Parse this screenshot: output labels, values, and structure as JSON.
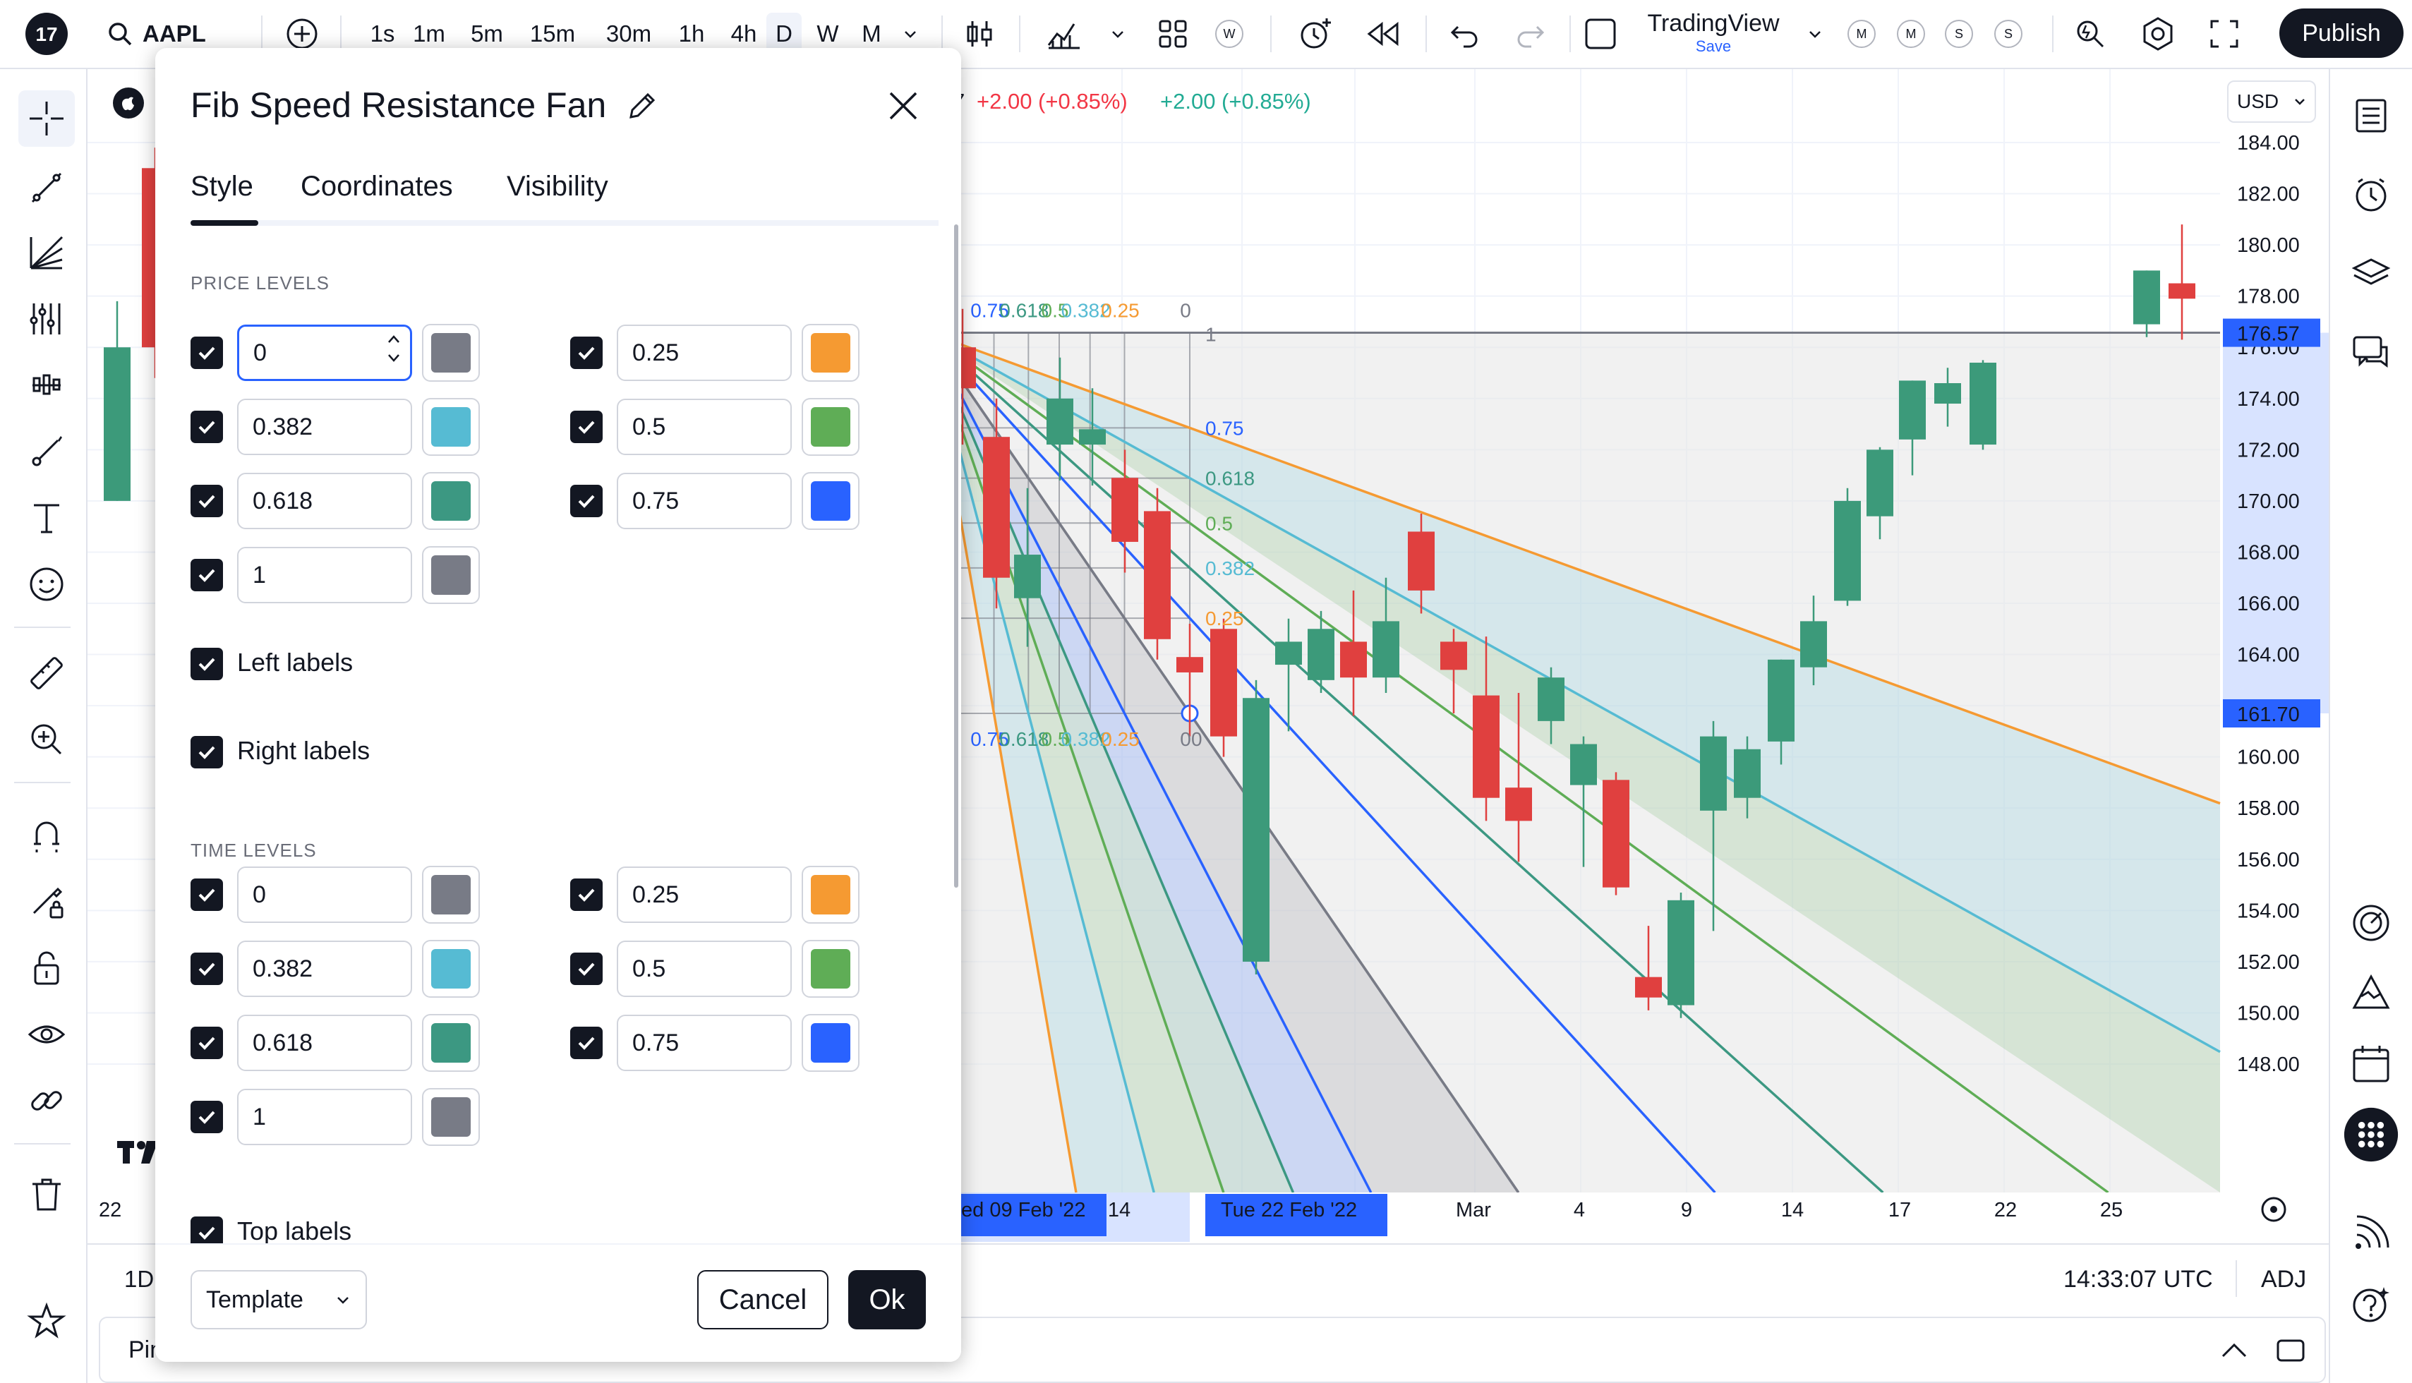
{
  "topbar": {
    "symbol": "AAPL",
    "intervals": [
      "1s",
      "1m",
      "5m",
      "15m",
      "30m",
      "1h",
      "4h",
      "D",
      "W",
      "M"
    ],
    "active_interval": "D",
    "layout_badge": "W",
    "layout_name": "TradingView",
    "layout_sub": "Save",
    "small_badges": [
      "M",
      "M",
      "S",
      "S"
    ],
    "publish_label": "Publish"
  },
  "legend": {
    "change_1": "+2.00 (+0.85%)",
    "change_2": "+2.00 (+0.85%)",
    "change_1_color": "#f23645",
    "change_2_color": "#22ab94",
    "truncated_prefix": "7"
  },
  "price_axis": {
    "currency": "USD",
    "labels": [
      "184.00",
      "182.00",
      "180.00",
      "178.00",
      "176.00",
      "174.00",
      "172.00",
      "170.00",
      "168.00",
      "166.00",
      "164.00",
      "162.00",
      "160.00",
      "158.00",
      "156.00",
      "154.00",
      "152.00",
      "150.00",
      "148.00"
    ],
    "last_price": "176.57",
    "last_price_color": "#2962ff",
    "cursor_price": "161.70"
  },
  "time_axis": {
    "labels": [
      "14",
      "Mar",
      "4",
      "9",
      "14",
      "17",
      "22",
      "25"
    ],
    "left_stub": "22",
    "selected_start": "ed 09 Feb '22",
    "selected_end": "Tue 22 Feb '22"
  },
  "status": {
    "interval": "1D",
    "clock": "14:33:07 UTC",
    "adj": "ADJ"
  },
  "bottom_panel": {
    "text": "Pin"
  },
  "fan_labels": {
    "price_levels_left": [
      "0.75",
      "0.618",
      "0.5",
      "0.382",
      "0.25",
      "0"
    ],
    "price_levels_right": [
      "0.75",
      "0.618",
      "0.5",
      "0.382",
      "0.25"
    ],
    "time_levels_top": [
      "0.75",
      "0.618",
      "0.5",
      "0.382",
      "0.25",
      "0"
    ],
    "left_1": "1",
    "right_1": "1",
    "right_0": "0"
  },
  "dialog": {
    "title": "Fib Speed Resistance Fan",
    "tabs": [
      "Style",
      "Coordinates",
      "Visibility"
    ],
    "active_tab": "Style",
    "price_section": "PRICE LEVELS",
    "time_section": "TIME LEVELS",
    "price_levels": [
      {
        "value": "0",
        "color": "#787b86",
        "checked": true
      },
      {
        "value": "0.25",
        "color": "#f59a32",
        "checked": true
      },
      {
        "value": "0.382",
        "color": "#56bbd3",
        "checked": true
      },
      {
        "value": "0.5",
        "color": "#5fad56",
        "checked": true
      },
      {
        "value": "0.618",
        "color": "#3c9882",
        "checked": true
      },
      {
        "value": "0.75",
        "color": "#2962ff",
        "checked": true
      },
      {
        "value": "1",
        "color": "#787b86",
        "checked": true
      }
    ],
    "time_levels": [
      {
        "value": "0",
        "color": "#787b86",
        "checked": true
      },
      {
        "value": "0.25",
        "color": "#f59a32",
        "checked": true
      },
      {
        "value": "0.382",
        "color": "#56bbd3",
        "checked": true
      },
      {
        "value": "0.5",
        "color": "#5fad56",
        "checked": true
      },
      {
        "value": "0.618",
        "color": "#3c9882",
        "checked": true
      },
      {
        "value": "0.75",
        "color": "#2962ff",
        "checked": true
      },
      {
        "value": "1",
        "color": "#787b86",
        "checked": true
      }
    ],
    "left_labels": "Left labels",
    "right_labels": "Right labels",
    "top_labels": "Top labels",
    "template_label": "Template",
    "cancel_label": "Cancel",
    "ok_label": "Ok"
  }
}
